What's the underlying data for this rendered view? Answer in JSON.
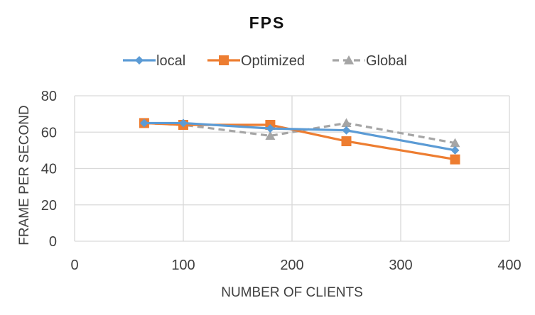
{
  "chart_data": {
    "type": "scatter",
    "title": "FPS",
    "xlabel": "NUMBER OF CLIENTS",
    "ylabel": "FRAME PER SECOND",
    "xlim": [
      0,
      400
    ],
    "ylim": [
      0,
      80
    ],
    "x_ticks": [
      "0",
      "100",
      "200",
      "300",
      "400"
    ],
    "y_ticks": [
      "0",
      "20",
      "40",
      "60",
      "80"
    ],
    "grid": true,
    "legend_position": "top",
    "series": [
      {
        "name": "local",
        "color": "#5B9BD5",
        "marker": "diamond",
        "line_style": "solid",
        "x": [
          64,
          100,
          180,
          250,
          350
        ],
        "y": [
          65,
          65,
          62,
          61,
          50
        ]
      },
      {
        "name": "Optimized",
        "color": "#ED7D31",
        "marker": "square",
        "line_style": "solid",
        "x": [
          64,
          100,
          180,
          250,
          350
        ],
        "y": [
          65,
          64,
          64,
          55,
          45
        ]
      },
      {
        "name": "Global",
        "color": "#A5A5A5",
        "marker": "triangle",
        "line_style": "dashed",
        "x": [
          64,
          100,
          180,
          250,
          350
        ],
        "y": [
          65,
          64,
          58,
          65,
          54
        ]
      }
    ]
  }
}
